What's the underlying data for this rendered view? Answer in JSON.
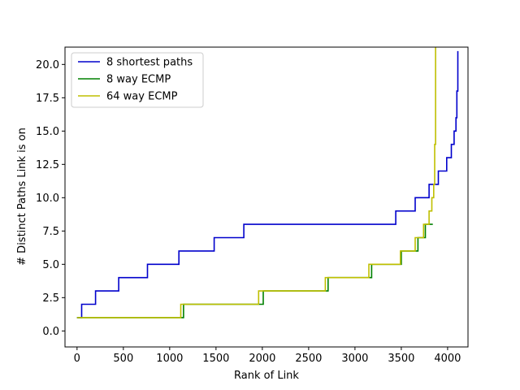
{
  "chart_data": {
    "type": "line",
    "title": "",
    "xlabel": "Rank of Link",
    "ylabel": "# Distinct Paths Link is on",
    "xlim": [
      -130,
      4220
    ],
    "ylim": [
      -1.2,
      21.3
    ],
    "xticks": [
      0,
      500,
      1000,
      1500,
      2000,
      2500,
      3000,
      3500,
      4000
    ],
    "yticks": [
      0.0,
      2.5,
      5.0,
      7.5,
      10.0,
      12.5,
      15.0,
      17.5,
      20.0
    ],
    "xtick_labels": [
      "0",
      "500",
      "1000",
      "1500",
      "2000",
      "2500",
      "3000",
      "3500",
      "4000"
    ],
    "ytick_labels": [
      "0.0",
      "2.5",
      "5.0",
      "7.5",
      "10.0",
      "12.5",
      "15.0",
      "17.5",
      "20.0"
    ],
    "grid": false,
    "legend_position": "top-left",
    "series": [
      {
        "name": "8 shortest paths",
        "color": "#0000cc",
        "x": [
          0,
          50,
          50,
          200,
          200,
          450,
          450,
          760,
          760,
          1100,
          1100,
          1480,
          1480,
          1800,
          1800,
          3440,
          3440,
          3650,
          3650,
          3800,
          3800,
          3900,
          3900,
          3990,
          3990,
          4040,
          4040,
          4070,
          4070,
          4090,
          4090,
          4100,
          4100,
          4110,
          4110
        ],
        "y": [
          1,
          1,
          2,
          2,
          3,
          3,
          4,
          4,
          5,
          5,
          6,
          6,
          7,
          7,
          8,
          8,
          9,
          9,
          10,
          10,
          11,
          11,
          12,
          12,
          13,
          13,
          14,
          14,
          15,
          15,
          16,
          16,
          18,
          18,
          21
        ]
      },
      {
        "name": "8 way ECMP",
        "color": "#008000",
        "x": [
          0,
          1150,
          1150,
          2010,
          2010,
          2710,
          2710,
          3180,
          3180,
          3500,
          3500,
          3680,
          3680,
          3760,
          3760,
          3840
        ],
        "y": [
          1,
          1,
          2,
          2,
          3,
          3,
          4,
          4,
          5,
          5,
          6,
          6,
          7,
          7,
          8,
          8
        ]
      },
      {
        "name": "64 way ECMP",
        "color": "#bfbf00",
        "x": [
          0,
          1120,
          1120,
          1960,
          1960,
          2680,
          2680,
          3150,
          3150,
          3490,
          3490,
          3650,
          3650,
          3740,
          3740,
          3800,
          3800,
          3830,
          3830,
          3850,
          3850,
          3860,
          3860,
          3870,
          3870
        ],
        "y": [
          1,
          1,
          2,
          2,
          3,
          3,
          4,
          4,
          5,
          5,
          6,
          6,
          7,
          7,
          8,
          8,
          9,
          9,
          10,
          10,
          11,
          11,
          14,
          14,
          21.3
        ]
      }
    ]
  }
}
